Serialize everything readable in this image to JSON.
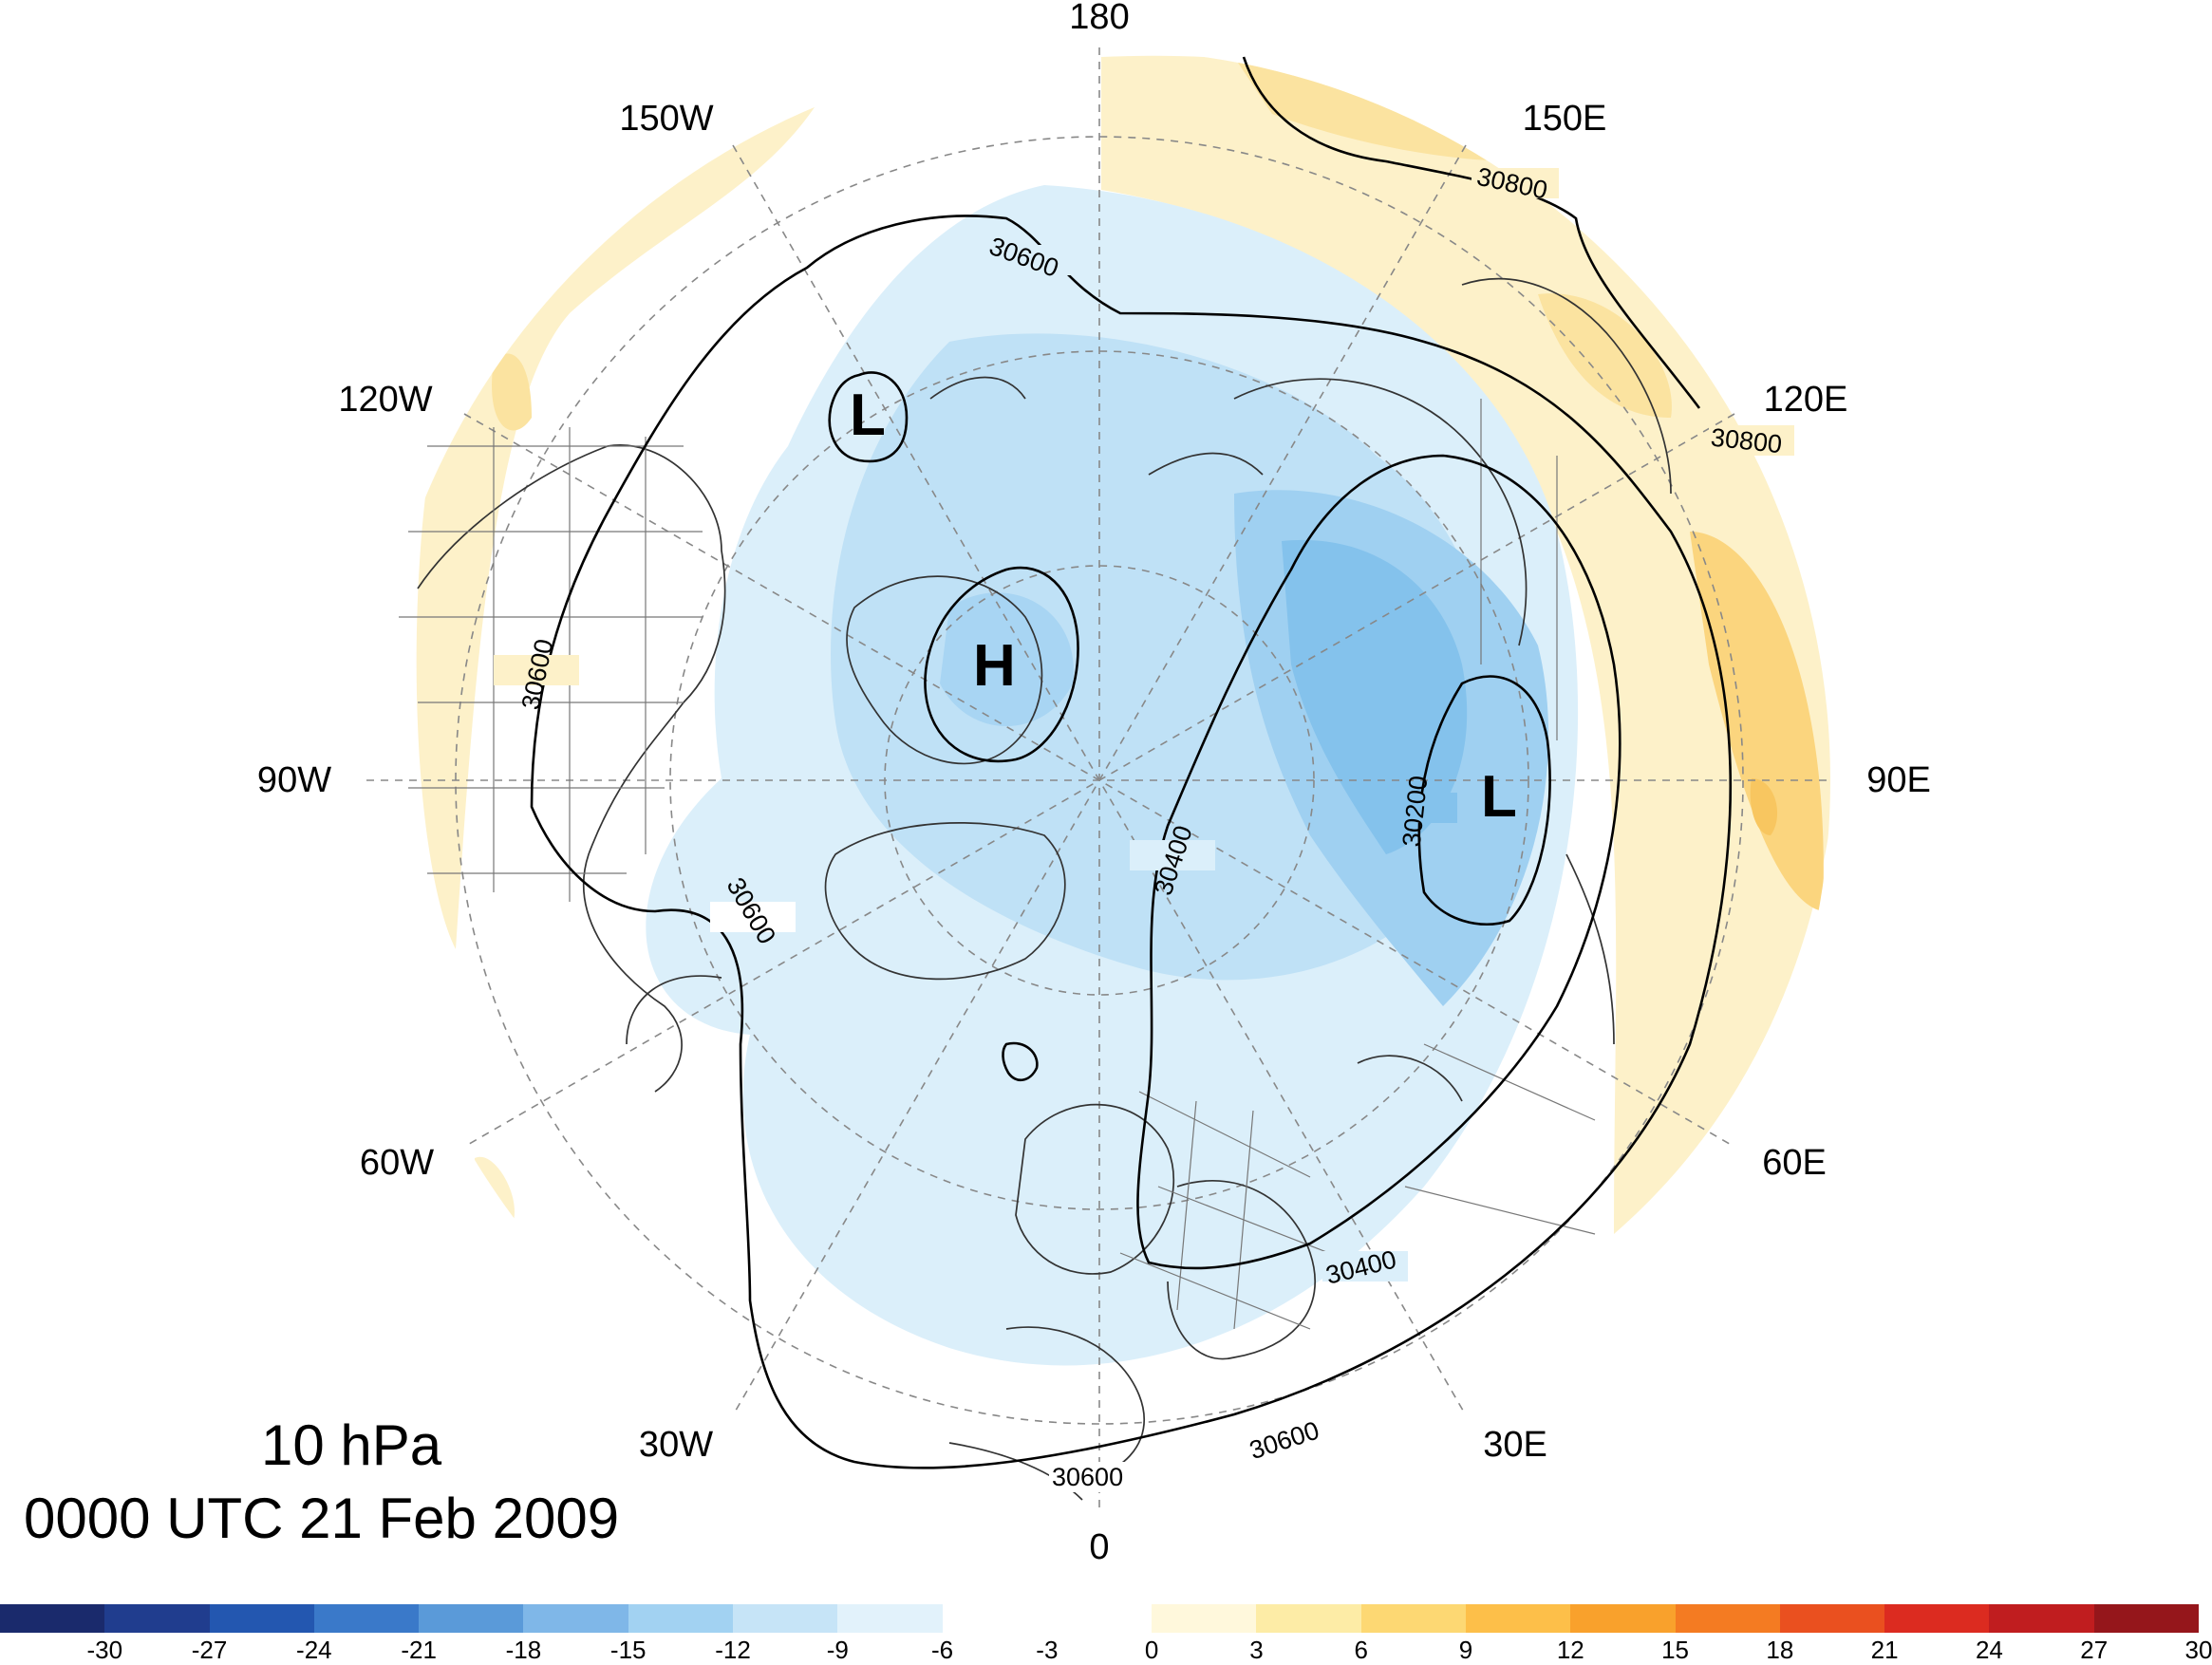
{
  "title": {
    "level": "10 hPa",
    "valid_time": "0000 UTC 21 Feb 2009"
  },
  "longitude_labels": [
    "180",
    "150E",
    "120E",
    "90E",
    "60E",
    "30E",
    "0",
    "30W",
    "60W",
    "90W",
    "120W",
    "150W"
  ],
  "contour_labels": [
    "30800",
    "30800",
    "30600",
    "30600",
    "30600",
    "30600",
    "30600",
    "30400",
    "30400",
    "30200"
  ],
  "centers": {
    "low_north_pacific": "L",
    "high_canadian_arctic": "H",
    "low_siberia": "L"
  },
  "colorbar": {
    "tick_labels": [
      "-30",
      "-27",
      "-24",
      "-21",
      "-18",
      "-15",
      "-12",
      "-9",
      "-6",
      "-3",
      "0",
      "3",
      "6",
      "9",
      "12",
      "15",
      "18",
      "21",
      "24",
      "27",
      "30"
    ],
    "colors": [
      "#1a2a6c",
      "#203d8e",
      "#2357b0",
      "#3a79c9",
      "#5a9ad9",
      "#7fb7e8",
      "#a2d2f2",
      "#c6e4f7",
      "#e2f2fb",
      "#ffffff",
      "#ffffff",
      "#fff8dc",
      "#fdeca6",
      "#fdd873",
      "#fdbf49",
      "#f9a12c",
      "#f47b22",
      "#ea501f",
      "#dc2b20",
      "#c01d1f",
      "#95161b"
    ]
  },
  "colors": {
    "negative_anomaly": "#a9d6f3",
    "strong_negative_anomaly": "#6db6e5",
    "positive_anomaly": "#fdeec0",
    "strong_positive_anomaly": "#fbd57e",
    "contour": "#000000",
    "coastline": "#333333"
  }
}
